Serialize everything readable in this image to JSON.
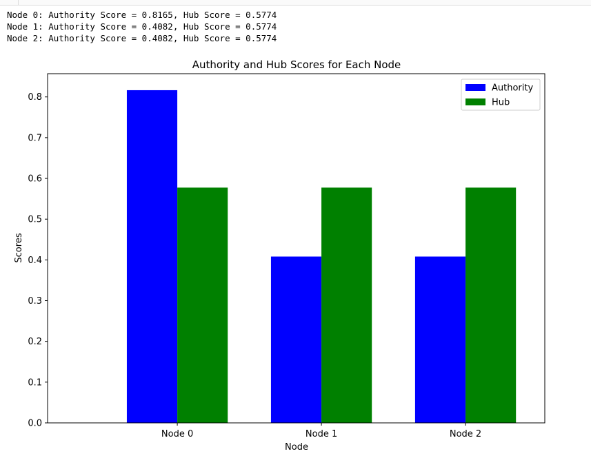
{
  "output": {
    "lines": [
      "Node 0: Authority Score = 0.8165, Hub Score = 0.5774",
      "Node 1: Authority Score = 0.4082, Hub Score = 0.5774",
      "Node 2: Authority Score = 0.4082, Hub Score = 0.5774"
    ]
  },
  "chart_data": {
    "type": "bar",
    "title": "Authority and Hub Scores for Each Node",
    "xlabel": "Node",
    "ylabel": "Scores",
    "categories": [
      "Node 0",
      "Node 1",
      "Node 2"
    ],
    "series": [
      {
        "name": "Authority",
        "color": "#0000ff",
        "values": [
          0.8165,
          0.4082,
          0.4082
        ]
      },
      {
        "name": "Hub",
        "color": "#008000",
        "values": [
          0.5774,
          0.5774,
          0.5774
        ]
      }
    ],
    "yticks": [
      "0.0",
      "0.1",
      "0.2",
      "0.3",
      "0.4",
      "0.5",
      "0.6",
      "0.7",
      "0.8"
    ],
    "ylim": [
      0,
      0.857
    ],
    "legend_position": "top-right",
    "grid": false
  }
}
